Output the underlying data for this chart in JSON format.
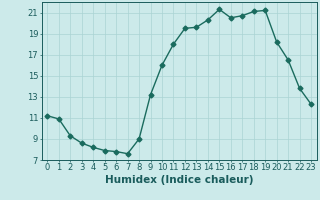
{
  "x": [
    0,
    1,
    2,
    3,
    4,
    5,
    6,
    7,
    8,
    9,
    10,
    11,
    12,
    13,
    14,
    15,
    16,
    17,
    18,
    19,
    20,
    21,
    22,
    23
  ],
  "y": [
    11.2,
    10.9,
    9.3,
    8.6,
    8.2,
    7.9,
    7.8,
    7.6,
    9.0,
    13.2,
    16.0,
    18.0,
    19.5,
    19.6,
    20.3,
    21.3,
    20.5,
    20.7,
    21.1,
    21.2,
    18.2,
    16.5,
    13.8,
    12.3
  ],
  "bg_color": "#cceaea",
  "line_color": "#1a6b5e",
  "marker_color": "#1a6b5e",
  "grid_color": "#aad4d4",
  "xlabel": "Humidex (Indice chaleur)",
  "xlim": [
    -0.5,
    23.5
  ],
  "ylim": [
    7,
    22
  ],
  "yticks": [
    7,
    9,
    11,
    13,
    15,
    17,
    19,
    21
  ],
  "xticks": [
    0,
    1,
    2,
    3,
    4,
    5,
    6,
    7,
    8,
    9,
    10,
    11,
    12,
    13,
    14,
    15,
    16,
    17,
    18,
    19,
    20,
    21,
    22,
    23
  ],
  "font_color": "#1a5c5c",
  "font_size": 6.0,
  "label_font_size": 7.5,
  "marker_size": 2.5,
  "line_width": 1.0
}
